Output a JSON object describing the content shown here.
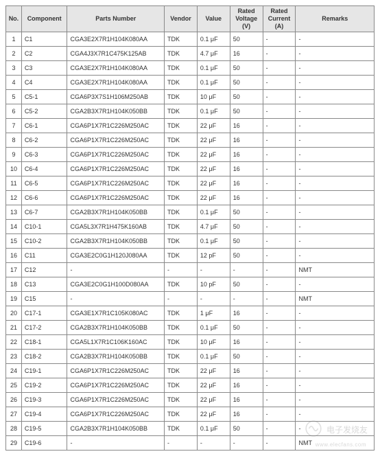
{
  "table": {
    "columns": [
      {
        "key": "no",
        "label": "No."
      },
      {
        "key": "comp",
        "label": "Component"
      },
      {
        "key": "part",
        "label": "Parts Number"
      },
      {
        "key": "vend",
        "label": "Vendor"
      },
      {
        "key": "val",
        "label": "Value"
      },
      {
        "key": "rv",
        "label": "Rated Voltage (V)"
      },
      {
        "key": "rc",
        "label": "Rated Current (A)"
      },
      {
        "key": "rem",
        "label": "Remarks"
      }
    ],
    "header_bg": "#e6e6e6",
    "border_color": "#888888",
    "font_size_pt": 7,
    "rows": [
      {
        "no": "1",
        "comp": "C1",
        "part": "CGA3E2X7R1H104K080AA",
        "vend": "TDK",
        "val": "0.1 μF",
        "rv": "50",
        "rc": "-",
        "rem": "-"
      },
      {
        "no": "2",
        "comp": "C2",
        "part": "CGA4J3X7R1C475K125AB",
        "vend": "TDK",
        "val": "4.7 μF",
        "rv": "16",
        "rc": "-",
        "rem": "-"
      },
      {
        "no": "3",
        "comp": "C3",
        "part": "CGA3E2X7R1H104K080AA",
        "vend": "TDK",
        "val": "0.1 μF",
        "rv": "50",
        "rc": "-",
        "rem": "-"
      },
      {
        "no": "4",
        "comp": "C4",
        "part": "CGA3E2X7R1H104K080AA",
        "vend": "TDK",
        "val": "0.1 μF",
        "rv": "50",
        "rc": "-",
        "rem": "-"
      },
      {
        "no": "5",
        "comp": "C5-1",
        "part": "CGA6P3X7S1H106M250AB",
        "vend": "TDK",
        "val": "10 μF",
        "rv": "50",
        "rc": "-",
        "rem": "-"
      },
      {
        "no": "6",
        "comp": "C5-2",
        "part": "CGA2B3X7R1H104K050BB",
        "vend": "TDK",
        "val": "0.1 μF",
        "rv": "50",
        "rc": "-",
        "rem": "-"
      },
      {
        "no": "7",
        "comp": "C6-1",
        "part": "CGA6P1X7R1C226M250AC",
        "vend": "TDK",
        "val": "22 μF",
        "rv": "16",
        "rc": "-",
        "rem": "-"
      },
      {
        "no": "8",
        "comp": "C6-2",
        "part": "CGA6P1X7R1C226M250AC",
        "vend": "TDK",
        "val": "22 μF",
        "rv": "16",
        "rc": "-",
        "rem": "-"
      },
      {
        "no": "9",
        "comp": "C6-3",
        "part": "CGA6P1X7R1C226M250AC",
        "vend": "TDK",
        "val": "22 μF",
        "rv": "16",
        "rc": "-",
        "rem": "-"
      },
      {
        "no": "10",
        "comp": "C6-4",
        "part": "CGA6P1X7R1C226M250AC",
        "vend": "TDK",
        "val": "22 μF",
        "rv": "16",
        "rc": "-",
        "rem": "-"
      },
      {
        "no": "11",
        "comp": "C6-5",
        "part": "CGA6P1X7R1C226M250AC",
        "vend": "TDK",
        "val": "22 μF",
        "rv": "16",
        "rc": "-",
        "rem": "-"
      },
      {
        "no": "12",
        "comp": "C6-6",
        "part": "CGA6P1X7R1C226M250AC",
        "vend": "TDK",
        "val": "22 μF",
        "rv": "16",
        "rc": "-",
        "rem": "-"
      },
      {
        "no": "13",
        "comp": "C6-7",
        "part": "CGA2B3X7R1H104K050BB",
        "vend": "TDK",
        "val": "0.1 μF",
        "rv": "50",
        "rc": "-",
        "rem": "-"
      },
      {
        "no": "14",
        "comp": "C10-1",
        "part": "CGA5L3X7R1H475K160AB",
        "vend": "TDK",
        "val": "4.7 μF",
        "rv": "50",
        "rc": "-",
        "rem": "-"
      },
      {
        "no": "15",
        "comp": "C10-2",
        "part": "CGA2B3X7R1H104K050BB",
        "vend": "TDK",
        "val": "0.1 μF",
        "rv": "50",
        "rc": "-",
        "rem": "-"
      },
      {
        "no": "16",
        "comp": "C11",
        "part": "CGA3E2C0G1H120J080AA",
        "vend": "TDK",
        "val": "12 pF",
        "rv": "50",
        "rc": "-",
        "rem": "-"
      },
      {
        "no": "17",
        "comp": "C12",
        "part": "-",
        "vend": "-",
        "val": "-",
        "rv": "-",
        "rc": "-",
        "rem": "NMT"
      },
      {
        "no": "18",
        "comp": "C13",
        "part": "CGA3E2C0G1H100D080AA",
        "vend": "TDK",
        "val": "10 pF",
        "rv": "50",
        "rc": "-",
        "rem": "-"
      },
      {
        "no": "19",
        "comp": "C15",
        "part": "-",
        "vend": "-",
        "val": "-",
        "rv": "-",
        "rc": "-",
        "rem": "NMT"
      },
      {
        "no": "20",
        "comp": "C17-1",
        "part": "CGA3E1X7R1C105K080AC",
        "vend": "TDK",
        "val": "1 μF",
        "rv": "16",
        "rc": "-",
        "rem": "-"
      },
      {
        "no": "21",
        "comp": "C17-2",
        "part": "CGA2B3X7R1H104K050BB",
        "vend": "TDK",
        "val": "0.1 μF",
        "rv": "50",
        "rc": "-",
        "rem": "-"
      },
      {
        "no": "22",
        "comp": "C18-1",
        "part": "CGA5L1X7R1C106K160AC",
        "vend": "TDK",
        "val": "10 μF",
        "rv": "16",
        "rc": "-",
        "rem": "-"
      },
      {
        "no": "23",
        "comp": "C18-2",
        "part": "CGA2B3X7R1H104K050BB",
        "vend": "TDK",
        "val": "0.1 μF",
        "rv": "50",
        "rc": "-",
        "rem": "-"
      },
      {
        "no": "24",
        "comp": "C19-1",
        "part": "CGA6P1X7R1C226M250AC",
        "vend": "TDK",
        "val": "22 μF",
        "rv": "16",
        "rc": "-",
        "rem": "-"
      },
      {
        "no": "25",
        "comp": "C19-2",
        "part": "CGA6P1X7R1C226M250AC",
        "vend": "TDK",
        "val": "22 μF",
        "rv": "16",
        "rc": "-",
        "rem": "-"
      },
      {
        "no": "26",
        "comp": "C19-3",
        "part": "CGA6P1X7R1C226M250AC",
        "vend": "TDK",
        "val": "22 μF",
        "rv": "16",
        "rc": "-",
        "rem": "-"
      },
      {
        "no": "27",
        "comp": "C19-4",
        "part": "CGA6P1X7R1C226M250AC",
        "vend": "TDK",
        "val": "22 μF",
        "rv": "16",
        "rc": "-",
        "rem": "-"
      },
      {
        "no": "28",
        "comp": "C19-5",
        "part": "CGA2B3X7R1H104K050BB",
        "vend": "TDK",
        "val": "0.1 μF",
        "rv": "50",
        "rc": "-",
        "rem": "-"
      },
      {
        "no": "29",
        "comp": "C19-6",
        "part": "-",
        "vend": "-",
        "val": "-",
        "rv": "-",
        "rc": "-",
        "rem": "NMT"
      }
    ]
  },
  "watermark": {
    "brand": "电子发烧友",
    "url": "www.elecfans.com",
    "color": "#666666"
  }
}
